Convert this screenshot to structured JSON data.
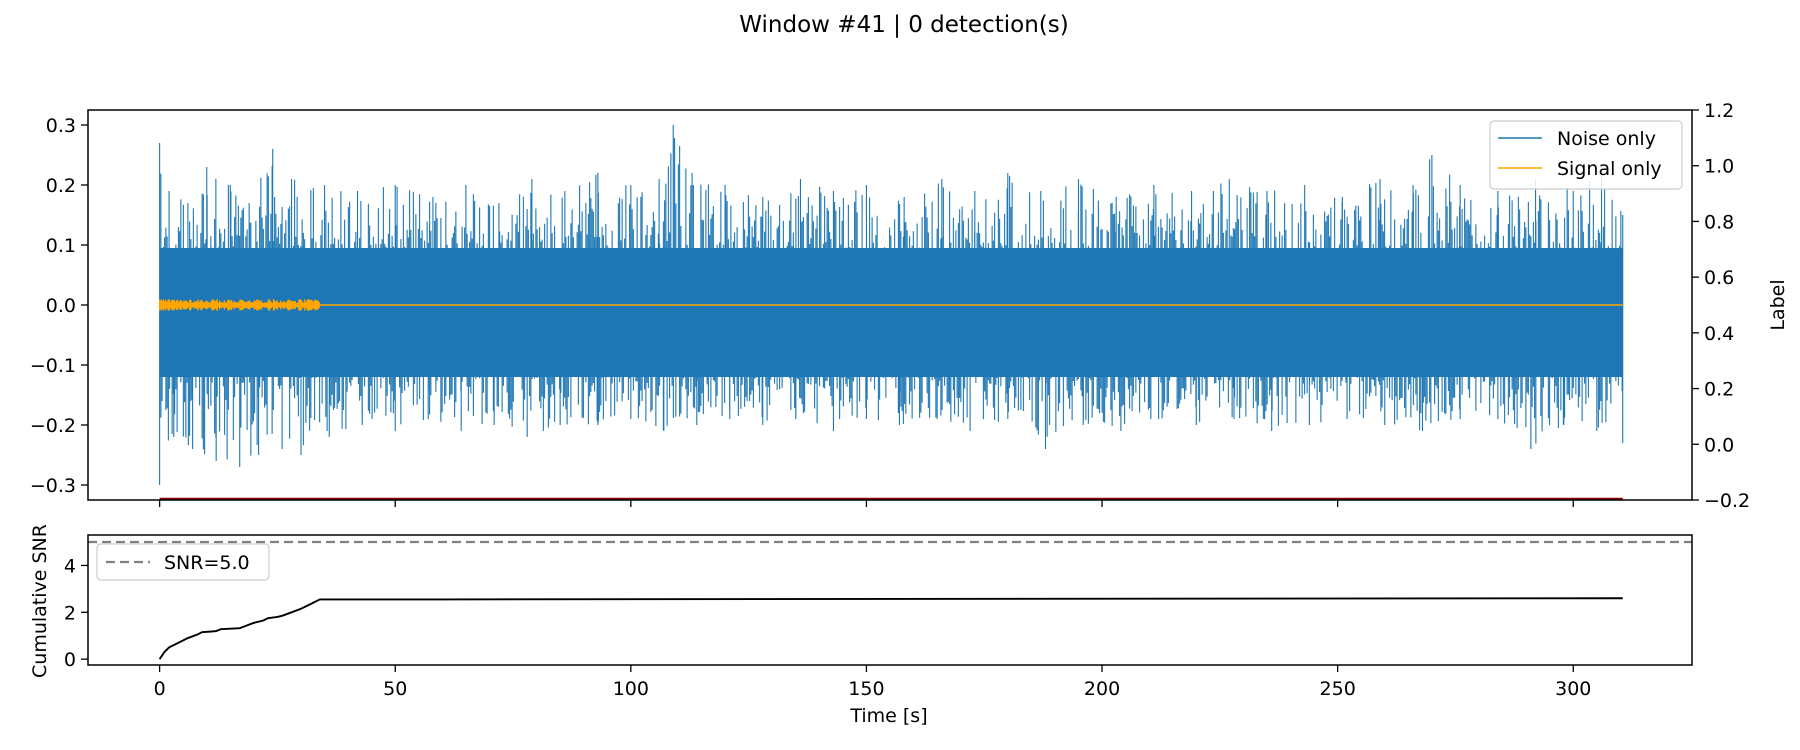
{
  "figure_title": "Window #41 | 0 detection(s)",
  "colors": {
    "noise": "#1f77b4",
    "signal": "#ffa500",
    "label_line": "#8b0000",
    "cumulative_snr": "#000000",
    "threshold": "#808080",
    "axes": "#000000"
  },
  "chart_data": [
    {
      "type": "line",
      "panel": "top",
      "x_range": [
        -15.2,
        325.2
      ],
      "ylim": [
        -0.325,
        0.325
      ],
      "yticks": [
        -0.3,
        -0.2,
        -0.1,
        0.0,
        0.1,
        0.2,
        0.3
      ],
      "ytick_labels": [
        "−0.3",
        "−0.2",
        "−0.1",
        "0.0",
        "0.1",
        "0.2",
        "0.3"
      ],
      "xticks": [
        0,
        50,
        100,
        150,
        200,
        250,
        300
      ],
      "secondary_y": {
        "ylabel": "Label",
        "ylim": [
          -0.2,
          1.2
        ],
        "yticks": [
          -0.2,
          0.0,
          0.2,
          0.4,
          0.6,
          0.8,
          1.0,
          1.2
        ],
        "ytick_labels": [
          "−0.2",
          "0.0",
          "0.2",
          "0.4",
          "0.6",
          "0.8",
          "1.0",
          "1.2"
        ]
      },
      "legend": {
        "placement": "upper right",
        "entries": [
          "Noise only",
          "Signal only"
        ]
      },
      "series": [
        {
          "name": "Noise only",
          "description_x": [
            0,
            310.5
          ],
          "envelope_top": [
            {
              "x": 0,
              "y": 0.27
            },
            {
              "x": 2,
              "y": 0.19
            },
            {
              "x": 6,
              "y": 0.17
            },
            {
              "x": 10,
              "y": 0.23
            },
            {
              "x": 15,
              "y": 0.2
            },
            {
              "x": 19,
              "y": 0.17
            },
            {
              "x": 24,
              "y": 0.26
            },
            {
              "x": 28,
              "y": 0.21
            },
            {
              "x": 35,
              "y": 0.2
            },
            {
              "x": 42,
              "y": 0.19
            },
            {
              "x": 50,
              "y": 0.2
            },
            {
              "x": 58,
              "y": 0.18
            },
            {
              "x": 65,
              "y": 0.2
            },
            {
              "x": 72,
              "y": 0.17
            },
            {
              "x": 79,
              "y": 0.21
            },
            {
              "x": 86,
              "y": 0.19
            },
            {
              "x": 93,
              "y": 0.22
            },
            {
              "x": 100,
              "y": 0.2
            },
            {
              "x": 106,
              "y": 0.21
            },
            {
              "x": 109,
              "y": 0.3
            },
            {
              "x": 113,
              "y": 0.22
            },
            {
              "x": 120,
              "y": 0.2
            },
            {
              "x": 128,
              "y": 0.18
            },
            {
              "x": 136,
              "y": 0.21
            },
            {
              "x": 143,
              "y": 0.19
            },
            {
              "x": 150,
              "y": 0.2
            },
            {
              "x": 158,
              "y": 0.18
            },
            {
              "x": 166,
              "y": 0.21
            },
            {
              "x": 173,
              "y": 0.19
            },
            {
              "x": 180,
              "y": 0.22
            },
            {
              "x": 187,
              "y": 0.19
            },
            {
              "x": 195,
              "y": 0.21
            },
            {
              "x": 203,
              "y": 0.18
            },
            {
              "x": 211,
              "y": 0.2
            },
            {
              "x": 219,
              "y": 0.19
            },
            {
              "x": 227,
              "y": 0.21
            },
            {
              "x": 235,
              "y": 0.19
            },
            {
              "x": 243,
              "y": 0.2
            },
            {
              "x": 251,
              "y": 0.18
            },
            {
              "x": 259,
              "y": 0.21
            },
            {
              "x": 266,
              "y": 0.2
            },
            {
              "x": 270,
              "y": 0.25
            },
            {
              "x": 276,
              "y": 0.2
            },
            {
              "x": 284,
              "y": 0.19
            },
            {
              "x": 292,
              "y": 0.21
            },
            {
              "x": 300,
              "y": 0.19
            },
            {
              "x": 306,
              "y": 0.23
            },
            {
              "x": 310.5,
              "y": 0.15
            }
          ],
          "envelope_bottom": [
            {
              "x": 0,
              "y": -0.3
            },
            {
              "x": 3,
              "y": -0.22
            },
            {
              "x": 7,
              "y": -0.24
            },
            {
              "x": 12,
              "y": -0.26
            },
            {
              "x": 17,
              "y": -0.27
            },
            {
              "x": 21,
              "y": -0.25
            },
            {
              "x": 26,
              "y": -0.24
            },
            {
              "x": 30,
              "y": -0.25
            },
            {
              "x": 36,
              "y": -0.22
            },
            {
              "x": 43,
              "y": -0.2
            },
            {
              "x": 50,
              "y": -0.21
            },
            {
              "x": 57,
              "y": -0.19
            },
            {
              "x": 64,
              "y": -0.21
            },
            {
              "x": 71,
              "y": -0.2
            },
            {
              "x": 78,
              "y": -0.22
            },
            {
              "x": 85,
              "y": -0.2
            },
            {
              "x": 93,
              "y": -0.2
            },
            {
              "x": 100,
              "y": -0.19
            },
            {
              "x": 107,
              "y": -0.21
            },
            {
              "x": 114,
              "y": -0.2
            },
            {
              "x": 121,
              "y": -0.19
            },
            {
              "x": 128,
              "y": -0.2
            },
            {
              "x": 135,
              "y": -0.19
            },
            {
              "x": 143,
              "y": -0.21
            },
            {
              "x": 150,
              "y": -0.19
            },
            {
              "x": 157,
              "y": -0.2
            },
            {
              "x": 165,
              "y": -0.19
            },
            {
              "x": 172,
              "y": -0.21
            },
            {
              "x": 180,
              "y": -0.19
            },
            {
              "x": 188,
              "y": -0.24
            },
            {
              "x": 196,
              "y": -0.2
            },
            {
              "x": 204,
              "y": -0.21
            },
            {
              "x": 212,
              "y": -0.19
            },
            {
              "x": 220,
              "y": -0.2
            },
            {
              "x": 228,
              "y": -0.19
            },
            {
              "x": 236,
              "y": -0.21
            },
            {
              "x": 244,
              "y": -0.2
            },
            {
              "x": 252,
              "y": -0.19
            },
            {
              "x": 260,
              "y": -0.2
            },
            {
              "x": 268,
              "y": -0.21
            },
            {
              "x": 276,
              "y": -0.19
            },
            {
              "x": 284,
              "y": -0.19
            },
            {
              "x": 291,
              "y": -0.24
            },
            {
              "x": 298,
              "y": -0.2
            },
            {
              "x": 305,
              "y": -0.21
            },
            {
              "x": 310.5,
              "y": -0.23
            }
          ]
        },
        {
          "name": "Signal only",
          "x_range": [
            0,
            310.5
          ],
          "y_value": 0.0,
          "active_burst": {
            "x_start": 0,
            "x_end": 34,
            "amplitude": 0.01
          }
        }
      ],
      "label_series": {
        "axis": "secondary",
        "x_range": [
          0,
          310.5
        ],
        "y_value": -0.2
      }
    },
    {
      "type": "line",
      "panel": "bottom",
      "xlabel": "Time [s]",
      "ylabel": "Cumulative SNR",
      "x_range": [
        -15.2,
        325.2
      ],
      "ylim": [
        -0.25,
        5.3
      ],
      "yticks": [
        0,
        2,
        4
      ],
      "ytick_labels": [
        "0",
        "2",
        "4"
      ],
      "xticks": [
        0,
        50,
        100,
        150,
        200,
        250,
        300
      ],
      "xtick_labels": [
        "0",
        "50",
        "100",
        "150",
        "200",
        "250",
        "300"
      ],
      "threshold": {
        "label": "SNR=5.0",
        "y": 5.0
      },
      "legend": {
        "placement": "upper left",
        "entries": [
          "SNR=5.0"
        ]
      },
      "series": [
        {
          "name": "cumulative SNR",
          "points": [
            {
              "x": 0,
              "y": 0.0
            },
            {
              "x": 1,
              "y": 0.3
            },
            {
              "x": 2,
              "y": 0.5
            },
            {
              "x": 4,
              "y": 0.7
            },
            {
              "x": 6,
              "y": 0.9
            },
            {
              "x": 8,
              "y": 1.05
            },
            {
              "x": 9,
              "y": 1.15
            },
            {
              "x": 11,
              "y": 1.18
            },
            {
              "x": 12,
              "y": 1.2
            },
            {
              "x": 13,
              "y": 1.28
            },
            {
              "x": 15,
              "y": 1.3
            },
            {
              "x": 17,
              "y": 1.32
            },
            {
              "x": 18,
              "y": 1.4
            },
            {
              "x": 20,
              "y": 1.55
            },
            {
              "x": 22,
              "y": 1.65
            },
            {
              "x": 23,
              "y": 1.75
            },
            {
              "x": 25,
              "y": 1.8
            },
            {
              "x": 26,
              "y": 1.85
            },
            {
              "x": 28,
              "y": 2.0
            },
            {
              "x": 30,
              "y": 2.15
            },
            {
              "x": 32,
              "y": 2.35
            },
            {
              "x": 34,
              "y": 2.55
            },
            {
              "x": 60,
              "y": 2.55
            },
            {
              "x": 310.5,
              "y": 2.6
            }
          ]
        }
      ]
    }
  ]
}
